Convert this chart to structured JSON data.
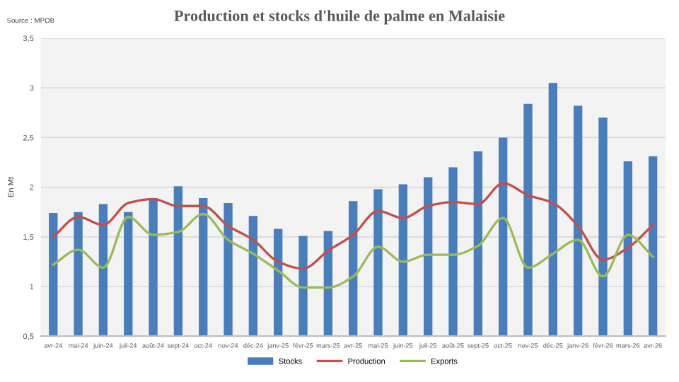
{
  "chart_data": {
    "type": "bar",
    "title": "Production et stocks d'huile de palme en Malaisie",
    "ylabel": "En Mt",
    "annotations": [
      "Source : MPOB"
    ],
    "categories": [
      "avr-24",
      "mai-24",
      "juin-24",
      "juil-24",
      "août-24",
      "sept-24",
      "oct-24",
      "nov-24",
      "déc-24",
      "janv-25",
      "févr-25",
      "mars-25",
      "avr-25",
      "mai-25",
      "juin-25",
      "juil-25",
      "août-25",
      "sept-25",
      "oct-25",
      "nov-25",
      "déc-25",
      "janv-26",
      "févr-26",
      "mars-26",
      "avr-26"
    ],
    "series": [
      {
        "name": "Stocks",
        "color": "#4a7ebb",
        "values": [
          1.74,
          1.75,
          1.83,
          1.75,
          1.89,
          2.01,
          1.89,
          1.84,
          1.71,
          1.58,
          1.51,
          1.56,
          1.86,
          1.98,
          2.03,
          2.1,
          2.2,
          2.36,
          2.5,
          2.84,
          3.05,
          2.82,
          2.7,
          2.26,
          2.31
        ]
      },
      {
        "name": "Production",
        "type": "line",
        "color": "#c0504d",
        "values": [
          1.5,
          1.7,
          1.62,
          1.84,
          1.88,
          1.81,
          1.81,
          1.61,
          1.47,
          1.25,
          1.18,
          1.36,
          1.52,
          1.76,
          1.69,
          1.81,
          1.85,
          1.83,
          2.04,
          1.92,
          1.84,
          1.61,
          1.27,
          1.39,
          1.62
        ]
      },
      {
        "name": "Exports",
        "type": "line",
        "color": "#9bbb59",
        "values": [
          1.22,
          1.37,
          1.19,
          1.7,
          1.52,
          1.55,
          1.73,
          1.47,
          1.33,
          1.16,
          0.99,
          0.99,
          1.1,
          1.4,
          1.25,
          1.32,
          1.32,
          1.41,
          1.69,
          1.19,
          1.33,
          1.47,
          1.1,
          1.52,
          1.3
        ]
      }
    ],
    "ylim": [
      0.5,
      3.5
    ],
    "yticks": [
      {
        "value": 0.5,
        "label": "0,5"
      },
      1,
      {
        "value": 1.5,
        "label": "1,5"
      },
      2,
      {
        "value": 2.5,
        "label": "2,5"
      },
      3,
      {
        "value": 3.5,
        "label": "3,5"
      }
    ],
    "grid": "y",
    "legend": "bottom",
    "marker": "none",
    "line_style": "solid"
  }
}
